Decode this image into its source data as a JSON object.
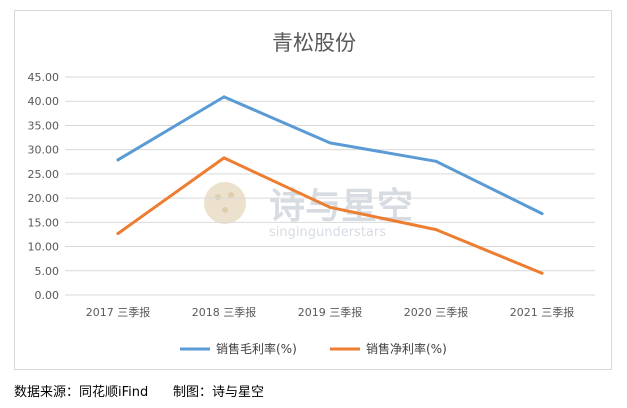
{
  "chart_data": {
    "type": "line",
    "title": "青松股份",
    "categories": [
      "2017 三季报",
      "2018 三季报",
      "2019 三季报",
      "2020 三季报",
      "2021 三季报"
    ],
    "series": [
      {
        "name": "销售毛利率(%)",
        "values": [
          27.9,
          40.9,
          31.4,
          27.6,
          16.8
        ],
        "color": "#5b9bd5"
      },
      {
        "name": "销售净利率(%)",
        "values": [
          12.7,
          28.3,
          18.1,
          13.5,
          4.5
        ],
        "color": "#ed7d31"
      }
    ],
    "ylim": [
      0,
      45
    ],
    "yticks": [
      "0.00",
      "5.00",
      "10.00",
      "15.00",
      "20.00",
      "25.00",
      "30.00",
      "35.00",
      "40.00",
      "45.00"
    ],
    "grid": true,
    "legend_position": "bottom"
  },
  "watermark": {
    "text": "诗与星空",
    "sub": "singingunderstars"
  },
  "footer": {
    "source": "数据来源：同花顺iFind",
    "credit": "制图：诗与星空"
  }
}
